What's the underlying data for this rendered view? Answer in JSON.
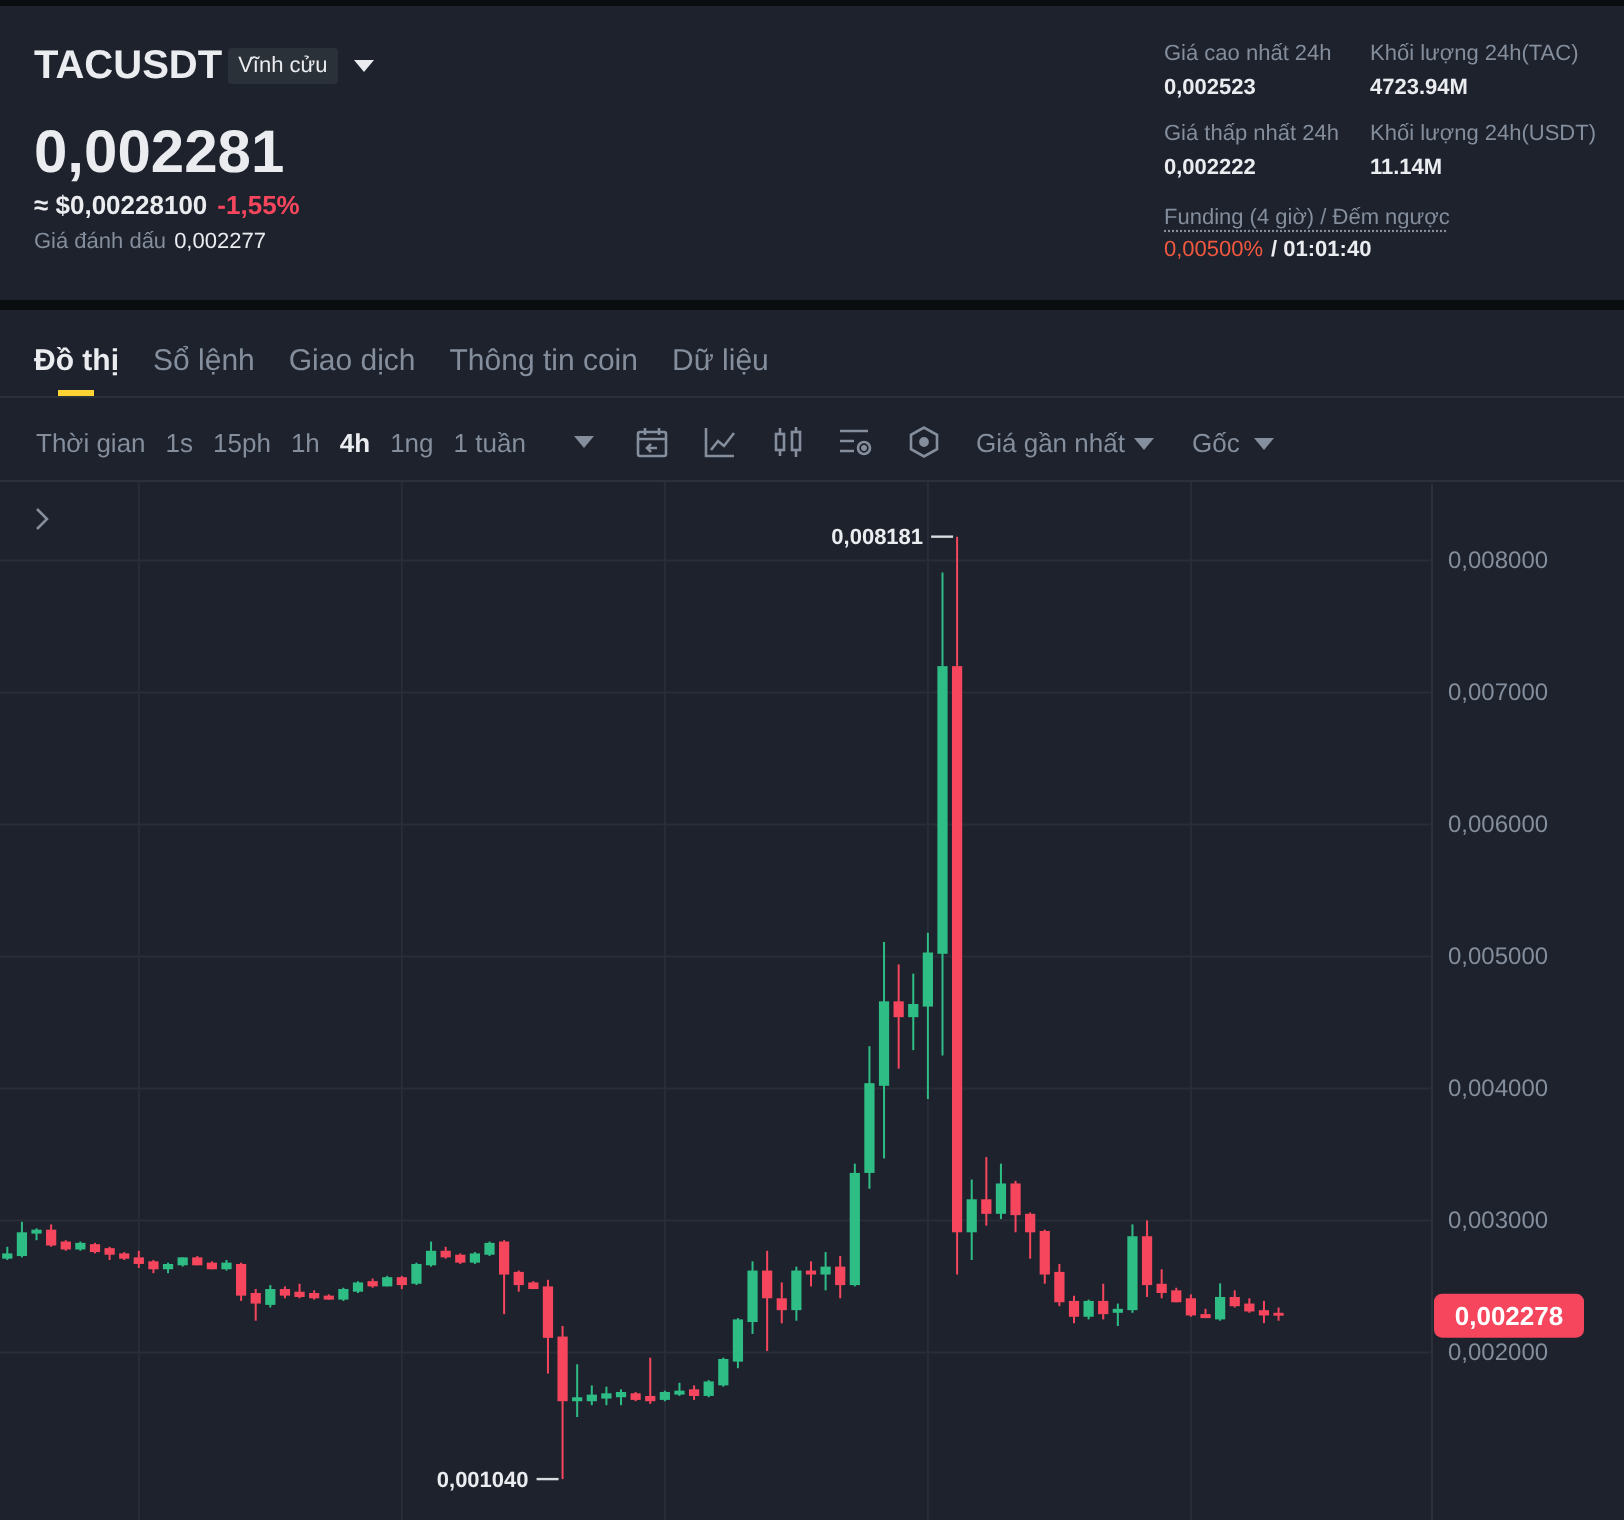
{
  "chart_data": [
    {
      "type": "other",
      "title": "TACUSDT",
      "annotations": [
        "Vĩnh cửu",
        "0,002281",
        "≈ $0,00228100",
        "-1,55%",
        "Giá đánh dấu",
        "0,002277",
        "Giá cao nhất 24h",
        "Khối lượng 24h(TAC)",
        "0,002523",
        "4723.94M",
        "Giá thấp nhất 24h",
        "Khối lượng 24h(USDT)",
        "0,002222",
        "11.14M",
        "Funding (4 giờ) / Đếm ngược",
        "0,00500%",
        "/ 01:01:40",
        "Đồ thị",
        "Sổ lệnh",
        "Giao dịch",
        "Thông tin coin",
        "Dữ liệu",
        "Thời gian",
        "1s",
        "15ph",
        "1h",
        "4h",
        "1ng",
        "1 tuần",
        "Giá gần nhất",
        "Gốc"
      ]
    },
    {
      "type": "candlestick",
      "categories": [
        null,
        null,
        null,
        null,
        null,
        null,
        null,
        null,
        null,
        null,
        null,
        null,
        null,
        null,
        null,
        null,
        null,
        null,
        null,
        null,
        null,
        null,
        null,
        null,
        null,
        null,
        null,
        null,
        null,
        null,
        null,
        null,
        null,
        null,
        null,
        null,
        null,
        null,
        null,
        null,
        null,
        null,
        null,
        null,
        null,
        null,
        null,
        null,
        null,
        null,
        null,
        null,
        null,
        null,
        null,
        null,
        null,
        null,
        null,
        null,
        null,
        null,
        null,
        null,
        null,
        null,
        null,
        null,
        null,
        null,
        null,
        null,
        null,
        null,
        null,
        null,
        null,
        null,
        null,
        null,
        null,
        null,
        null,
        null,
        null,
        null,
        null,
        null,
        null,
        null,
        null,
        null,
        null,
        null,
        null,
        null,
        null,
        null
      ],
      "ohlc": [
        [
          0.00271,
          0.0028,
          0.0027,
          0.00275
        ],
        [
          0.00273,
          0.00299,
          0.00272,
          0.00291
        ],
        [
          0.0029,
          0.00294,
          0.00285,
          0.00293
        ],
        [
          0.00293,
          0.00297,
          0.0028,
          0.00281
        ],
        [
          0.00284,
          0.00285,
          0.00277,
          0.00278
        ],
        [
          0.00278,
          0.00284,
          0.00277,
          0.00283
        ],
        [
          0.00282,
          0.00283,
          0.00275,
          0.00276
        ],
        [
          0.00279,
          0.0028,
          0.0027,
          0.00274
        ],
        [
          0.00275,
          0.00276,
          0.0027,
          0.00271
        ],
        [
          0.00272,
          0.00277,
          0.00264,
          0.00267
        ],
        [
          0.00269,
          0.0027,
          0.0026,
          0.00263
        ],
        [
          0.00263,
          0.00268,
          0.0026,
          0.00267
        ],
        [
          0.00266,
          0.00272,
          0.00265,
          0.00272
        ],
        [
          0.00272,
          0.00273,
          0.00266,
          0.00266
        ],
        [
          0.00268,
          0.00269,
          0.00263,
          0.00263
        ],
        [
          0.00263,
          0.0027,
          0.00262,
          0.00268
        ],
        [
          0.00267,
          0.00268,
          0.00239,
          0.00243
        ],
        [
          0.00245,
          0.00248,
          0.00224,
          0.00237
        ],
        [
          0.00236,
          0.00251,
          0.00234,
          0.00248
        ],
        [
          0.00248,
          0.0025,
          0.00241,
          0.00243
        ],
        [
          0.00246,
          0.00252,
          0.00241,
          0.00242
        ],
        [
          0.00245,
          0.00247,
          0.0024,
          0.00241
        ],
        [
          0.00243,
          0.00244,
          0.0024,
          0.0024
        ],
        [
          0.0024,
          0.00249,
          0.00239,
          0.00248
        ],
        [
          0.00246,
          0.00254,
          0.00245,
          0.00253
        ],
        [
          0.00254,
          0.00256,
          0.00249,
          0.0025
        ],
        [
          0.0025,
          0.00258,
          0.0025,
          0.00257
        ],
        [
          0.00257,
          0.00258,
          0.00248,
          0.00251
        ],
        [
          0.00252,
          0.00268,
          0.00251,
          0.00267
        ],
        [
          0.00266,
          0.00284,
          0.00265,
          0.00277
        ],
        [
          0.00277,
          0.0028,
          0.00271,
          0.00272
        ],
        [
          0.00274,
          0.00275,
          0.00267,
          0.00268
        ],
        [
          0.00268,
          0.00276,
          0.00267,
          0.00275
        ],
        [
          0.00274,
          0.00284,
          0.00273,
          0.00283
        ],
        [
          0.00284,
          0.00285,
          0.00229,
          0.00259
        ],
        [
          0.00261,
          0.00262,
          0.00246,
          0.00251
        ],
        [
          0.00253,
          0.00254,
          0.00248,
          0.00248
        ],
        [
          0.0025,
          0.00255,
          0.00184,
          0.00211
        ],
        [
          0.00212,
          0.0022,
          0.00104,
          0.00163
        ],
        [
          0.00163,
          0.00191,
          0.00151,
          0.00166
        ],
        [
          0.00163,
          0.00175,
          0.0016,
          0.00168
        ],
        [
          0.00165,
          0.00174,
          0.0016,
          0.00169
        ],
        [
          0.00166,
          0.00172,
          0.0016,
          0.0017
        ],
        [
          0.00169,
          0.0017,
          0.00163,
          0.00164
        ],
        [
          0.00167,
          0.00196,
          0.00161,
          0.00163
        ],
        [
          0.00164,
          0.00171,
          0.00163,
          0.0017
        ],
        [
          0.00168,
          0.00177,
          0.00167,
          0.00171
        ],
        [
          0.00172,
          0.00175,
          0.00164,
          0.00167
        ],
        [
          0.00167,
          0.00179,
          0.00166,
          0.00178
        ],
        [
          0.00175,
          0.00196,
          0.00174,
          0.00195
        ],
        [
          0.00193,
          0.00226,
          0.00188,
          0.00225
        ],
        [
          0.00223,
          0.00269,
          0.00214,
          0.00262
        ],
        [
          0.00262,
          0.00277,
          0.00201,
          0.00241
        ],
        [
          0.00241,
          0.00253,
          0.00222,
          0.00232
        ],
        [
          0.00232,
          0.00265,
          0.00224,
          0.00262
        ],
        [
          0.00262,
          0.00269,
          0.0025,
          0.00259
        ],
        [
          0.00259,
          0.00276,
          0.00247,
          0.00265
        ],
        [
          0.00265,
          0.00273,
          0.00241,
          0.00251
        ],
        [
          0.00251,
          0.00343,
          0.0025,
          0.00336
        ],
        [
          0.00336,
          0.00432,
          0.00324,
          0.00404
        ],
        [
          0.00402,
          0.00511,
          0.00347,
          0.00466
        ],
        [
          0.00466,
          0.00494,
          0.00415,
          0.00454
        ],
        [
          0.00454,
          0.00487,
          0.00429,
          0.00464
        ],
        [
          0.00462,
          0.00518,
          0.00392,
          0.00503
        ],
        [
          0.00502,
          0.00791,
          0.00425,
          0.0072
        ],
        [
          0.0072,
          0.008181,
          0.00259,
          0.00291
        ],
        [
          0.00291,
          0.00331,
          0.0027,
          0.00316
        ],
        [
          0.00316,
          0.00348,
          0.00296,
          0.00305
        ],
        [
          0.00305,
          0.00343,
          0.00301,
          0.00328
        ],
        [
          0.00328,
          0.0033,
          0.00291,
          0.00304
        ],
        [
          0.00305,
          0.00306,
          0.00271,
          0.00291
        ],
        [
          0.00292,
          0.00293,
          0.00252,
          0.00259
        ],
        [
          0.00261,
          0.00267,
          0.00235,
          0.00238
        ],
        [
          0.00239,
          0.00243,
          0.00222,
          0.00227
        ],
        [
          0.00227,
          0.0024,
          0.00225,
          0.00239
        ],
        [
          0.00239,
          0.00252,
          0.00225,
          0.00229
        ],
        [
          0.0023,
          0.00237,
          0.0022,
          0.00233
        ],
        [
          0.00232,
          0.00297,
          0.0023,
          0.00288
        ],
        [
          0.00288,
          0.003,
          0.00242,
          0.00251
        ],
        [
          0.00252,
          0.00263,
          0.00241,
          0.00245
        ],
        [
          0.00247,
          0.00249,
          0.00238,
          0.00238
        ],
        [
          0.00241,
          0.00244,
          0.00227,
          0.00228
        ],
        [
          0.00229,
          0.00233,
          0.00226,
          0.00226
        ],
        [
          0.00225,
          0.002523,
          0.00224,
          0.00242
        ],
        [
          0.00242,
          0.00247,
          0.00234,
          0.00235
        ],
        [
          0.00237,
          0.00241,
          0.0023,
          0.00231
        ],
        [
          0.00232,
          0.00239,
          0.002222,
          0.00228
        ],
        [
          0.0023,
          0.00234,
          0.00224,
          0.002278
        ],
        null,
        null,
        null,
        null,
        null,
        null,
        null,
        null,
        null,
        null
      ],
      "ylim": [
        0.00073,
        0.00858
      ],
      "yticks": [
        {
          "value": 0.002,
          "label": "0,002000"
        },
        {
          "value": 0.003,
          "label": "0,003000"
        },
        {
          "value": 0.004,
          "label": "0,004000"
        },
        {
          "value": 0.005,
          "label": "0,005000"
        },
        {
          "value": 0.006,
          "label": "0,006000"
        },
        {
          "value": 0.007,
          "label": "0,007000"
        },
        {
          "value": 0.008,
          "label": "0,008000"
        }
      ],
      "grid": true,
      "annotations": [
        "0,008181",
        "0,001040",
        "0,002278"
      ]
    }
  ]
}
